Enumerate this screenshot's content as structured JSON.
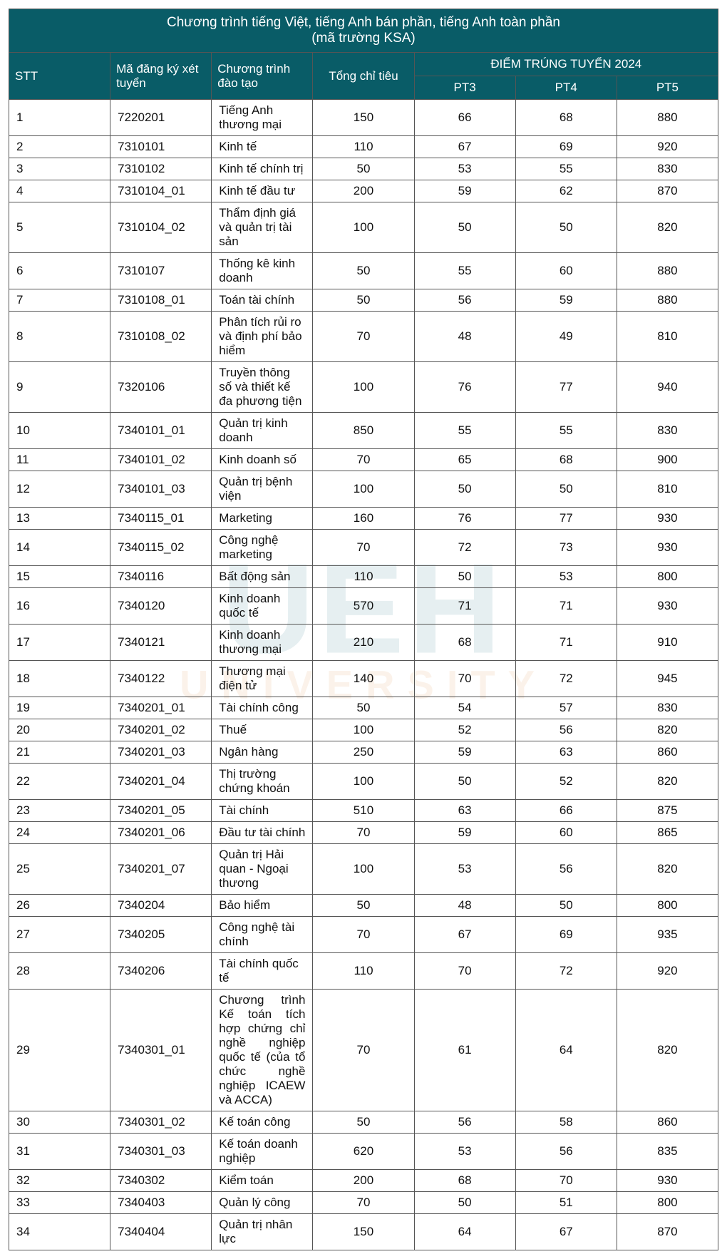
{
  "header": {
    "title_line1": "Chương trình tiếng Việt, tiếng Anh bán phần, tiếng Anh toàn phần",
    "title_line2": "(mã trường KSA)",
    "col_stt": "STT",
    "col_code": "Mã đăng ký xét tuyển",
    "col_program": "Chương trình đào tạo",
    "col_quota": "Tổng chỉ tiêu",
    "col_score_group": "ĐIỂM TRÚNG TUYỂN 2024",
    "col_pt3": "PT3",
    "col_pt4": "PT4",
    "col_pt5": "PT5"
  },
  "style": {
    "header_bg": "#095c67",
    "header_fg": "#ffffff",
    "border_color": "#555555",
    "font_size_body": 17,
    "font_size_header": 19,
    "watermark_top_color": "#13697d",
    "watermark_bottom_color": "#e08a3a"
  },
  "columns": [
    "stt",
    "code",
    "name",
    "quota",
    "pt3",
    "pt4",
    "pt5"
  ],
  "rows": [
    {
      "stt": "1",
      "code": "7220201",
      "name": "Tiếng Anh thương mại",
      "quota": "150",
      "pt3": "66",
      "pt4": "68",
      "pt5": "880"
    },
    {
      "stt": "2",
      "code": "7310101",
      "name": "Kinh tế",
      "quota": "110",
      "pt3": "67",
      "pt4": "69",
      "pt5": "920"
    },
    {
      "stt": "3",
      "code": "7310102",
      "name": "Kinh tế chính trị",
      "quota": "50",
      "pt3": "53",
      "pt4": "55",
      "pt5": "830"
    },
    {
      "stt": "4",
      "code": "7310104_01",
      "name": "Kinh tế đầu tư",
      "quota": "200",
      "pt3": "59",
      "pt4": "62",
      "pt5": "870"
    },
    {
      "stt": "5",
      "code": "7310104_02",
      "name": "Thẩm định giá và quản trị tài sản",
      "quota": "100",
      "pt3": "50",
      "pt4": "50",
      "pt5": "820"
    },
    {
      "stt": "6",
      "code": "7310107",
      "name": "Thống kê kinh doanh",
      "quota": "50",
      "pt3": "55",
      "pt4": "60",
      "pt5": "880"
    },
    {
      "stt": "7",
      "code": "7310108_01",
      "name": "Toán tài chính",
      "quota": "50",
      "pt3": "56",
      "pt4": "59",
      "pt5": "880"
    },
    {
      "stt": "8",
      "code": "7310108_02",
      "name": "Phân tích rủi ro và định phí bảo hiểm",
      "quota": "70",
      "pt3": "48",
      "pt4": "49",
      "pt5": "810"
    },
    {
      "stt": "9",
      "code": "7320106",
      "name": "Truyền thông số và thiết kế đa phương tiện",
      "quota": "100",
      "pt3": "76",
      "pt4": "77",
      "pt5": "940"
    },
    {
      "stt": "10",
      "code": "7340101_01",
      "name": "Quản trị kinh doanh",
      "quota": "850",
      "pt3": "55",
      "pt4": "55",
      "pt5": "830"
    },
    {
      "stt": "11",
      "code": "7340101_02",
      "name": "Kinh doanh số",
      "quota": "70",
      "pt3": "65",
      "pt4": "68",
      "pt5": "900"
    },
    {
      "stt": "12",
      "code": "7340101_03",
      "name": "Quản trị bệnh viện",
      "quota": "100",
      "pt3": "50",
      "pt4": "50",
      "pt5": "810"
    },
    {
      "stt": "13",
      "code": "7340115_01",
      "name": "Marketing",
      "quota": "160",
      "pt3": "76",
      "pt4": "77",
      "pt5": "930"
    },
    {
      "stt": "14",
      "code": "7340115_02",
      "name": "Công nghệ marketing",
      "quota": "70",
      "pt3": "72",
      "pt4": "73",
      "pt5": "930"
    },
    {
      "stt": "15",
      "code": "7340116",
      "name": "Bất động sản",
      "quota": "110",
      "pt3": "50",
      "pt4": "53",
      "pt5": "800"
    },
    {
      "stt": "16",
      "code": "7340120",
      "name": "Kinh doanh quốc tế",
      "quota": "570",
      "pt3": "71",
      "pt4": "71",
      "pt5": "930"
    },
    {
      "stt": "17",
      "code": "7340121",
      "name": "Kinh doanh thương mại",
      "quota": "210",
      "pt3": "68",
      "pt4": "71",
      "pt5": "910"
    },
    {
      "stt": "18",
      "code": "7340122",
      "name": "Thương mại điện tử",
      "quota": "140",
      "pt3": "70",
      "pt4": "72",
      "pt5": "945"
    },
    {
      "stt": "19",
      "code": "7340201_01",
      "name": "Tài chính công",
      "quota": "50",
      "pt3": "54",
      "pt4": "57",
      "pt5": "830"
    },
    {
      "stt": "20",
      "code": "7340201_02",
      "name": "Thuế",
      "quota": "100",
      "pt3": "52",
      "pt4": "56",
      "pt5": "820"
    },
    {
      "stt": "21",
      "code": "7340201_03",
      "name": "Ngân hàng",
      "quota": "250",
      "pt3": "59",
      "pt4": "63",
      "pt5": "860"
    },
    {
      "stt": "22",
      "code": "7340201_04",
      "name": "Thị trường chứng khoán",
      "quota": "100",
      "pt3": "50",
      "pt4": "52",
      "pt5": "820"
    },
    {
      "stt": "23",
      "code": "7340201_05",
      "name": "Tài chính",
      "quota": "510",
      "pt3": "63",
      "pt4": "66",
      "pt5": "875"
    },
    {
      "stt": "24",
      "code": "7340201_06",
      "name": "Đầu tư tài chính",
      "quota": "70",
      "pt3": "59",
      "pt4": "60",
      "pt5": "865"
    },
    {
      "stt": "25",
      "code": "7340201_07",
      "name": "Quản trị Hải quan - Ngoại thương",
      "quota": "100",
      "pt3": "53",
      "pt4": "56",
      "pt5": "820"
    },
    {
      "stt": "26",
      "code": "7340204",
      "name": "Bảo hiểm",
      "quota": "50",
      "pt3": "48",
      "pt4": "50",
      "pt5": "800"
    },
    {
      "stt": "27",
      "code": "7340205",
      "name": "Công nghệ tài chính",
      "quota": "70",
      "pt3": "67",
      "pt4": "69",
      "pt5": "935"
    },
    {
      "stt": "28",
      "code": "7340206",
      "name": "Tài chính quốc tế",
      "quota": "110",
      "pt3": "70",
      "pt4": "72",
      "pt5": "920"
    },
    {
      "stt": "29",
      "code": "7340301_01",
      "name": "Chương trình Kế toán tích hợp chứng chỉ nghề nghiệp quốc tế (của tổ chức nghề nghiệp ICAEW và ACCA)",
      "quota": "70",
      "pt3": "61",
      "pt4": "64",
      "pt5": "820",
      "justify": true
    },
    {
      "stt": "30",
      "code": "7340301_02",
      "name": "Kế toán công",
      "quota": "50",
      "pt3": "56",
      "pt4": "58",
      "pt5": "860"
    },
    {
      "stt": "31",
      "code": "7340301_03",
      "name": "Kế toán doanh nghiệp",
      "quota": "620",
      "pt3": "53",
      "pt4": "56",
      "pt5": "835"
    },
    {
      "stt": "32",
      "code": "7340302",
      "name": "Kiểm toán",
      "quota": "200",
      "pt3": "68",
      "pt4": "70",
      "pt5": "930"
    },
    {
      "stt": "33",
      "code": "7340403",
      "name": "Quản lý công",
      "quota": "70",
      "pt3": "50",
      "pt4": "51",
      "pt5": "800"
    },
    {
      "stt": "34",
      "code": "7340404",
      "name": "Quản trị nhân lực",
      "quota": "150",
      "pt3": "64",
      "pt4": "67",
      "pt5": "870"
    }
  ]
}
